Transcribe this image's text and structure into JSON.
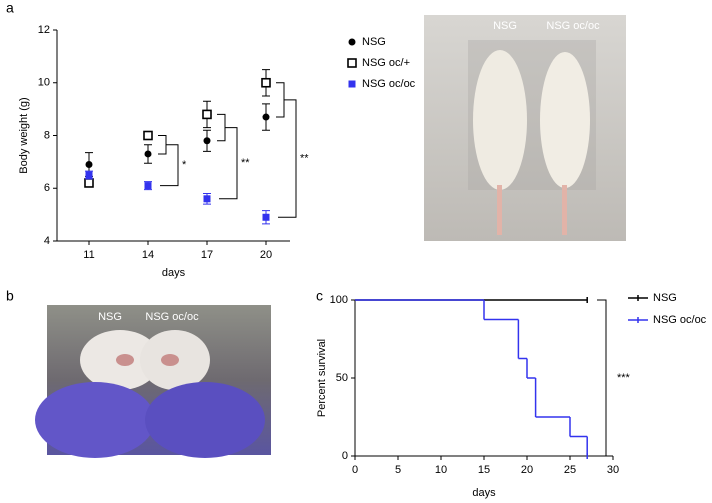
{
  "figure": {
    "panels": [
      "a",
      "b",
      "c"
    ],
    "photo_a_labels": [
      "NSG",
      "NSG oc/oc"
    ],
    "photo_b_labels": [
      "NSG",
      "NSG oc/oc"
    ]
  },
  "chart_data": [
    {
      "type": "scatter",
      "categories": [
        "11",
        "14",
        "17",
        "20"
      ],
      "x_label": "days",
      "y_label": "Body weight (g)",
      "ylim": [
        4,
        12
      ],
      "yticks": [
        4,
        6,
        8,
        10,
        12
      ],
      "series": [
        {
          "name": "NSG",
          "color": "#000000",
          "marker": "circle",
          "values": [
            6.9,
            7.3,
            7.8,
            8.7
          ],
          "errors": [
            0.45,
            0.35,
            0.4,
            0.5
          ]
        },
        {
          "name": "NSG oc/+",
          "color": "#000000",
          "marker": "open-square",
          "values": [
            6.2,
            8.0,
            8.8,
            10.0
          ],
          "errors": [
            0.15,
            0.15,
            0.5,
            0.5
          ]
        },
        {
          "name": "NSG oc/oc",
          "color": "#3333ee",
          "marker": "square",
          "values": [
            6.5,
            6.1,
            5.6,
            4.9
          ],
          "errors": [
            0.15,
            0.15,
            0.2,
            0.25
          ]
        }
      ],
      "significance": [
        null,
        "*",
        "**",
        "**"
      ]
    },
    {
      "type": "step",
      "x_label": "days",
      "y_label": "Percent survival",
      "xlim": [
        0,
        30
      ],
      "xticks": [
        0,
        5,
        10,
        15,
        20,
        25,
        30
      ],
      "ylim": [
        0,
        100
      ],
      "yticks": [
        0,
        50,
        100
      ],
      "series": [
        {
          "name": "NSG",
          "color": "#000000",
          "x": [
            0,
            27
          ],
          "values": [
            100,
            100
          ]
        },
        {
          "name": "NSG oc/oc",
          "color": "#3333ee",
          "x": [
            0,
            15,
            19,
            20,
            21,
            25,
            27
          ],
          "values": [
            100,
            87.5,
            62.5,
            50,
            25,
            12.5,
            0
          ]
        }
      ],
      "significance": "***"
    }
  ]
}
